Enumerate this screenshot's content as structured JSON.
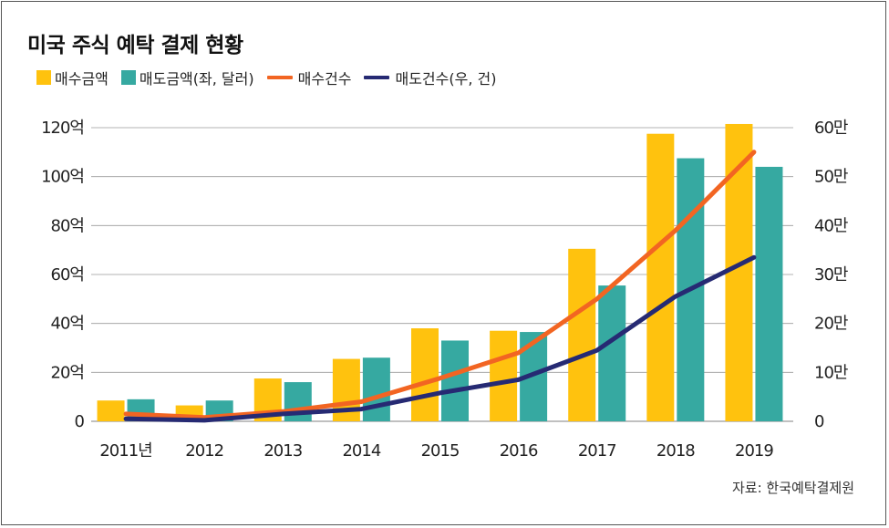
{
  "title": "미국 주식 예탁 결제 현황",
  "source": "자료: 한국예탁결제원",
  "colors": {
    "buy_amount": "#FFC20E",
    "sell_amount": "#36A9A1",
    "buy_count": "#F26522",
    "sell_count": "#262A73"
  },
  "legend": [
    {
      "label": "매수금액",
      "kind": "box",
      "color": "#FFC20E"
    },
    {
      "label": "매도금액(좌, 달러)",
      "kind": "box",
      "color": "#36A9A1"
    },
    {
      "label": "매수건수",
      "kind": "line",
      "color": "#F26522"
    },
    {
      "label": "매도건수(우, 건)",
      "kind": "line",
      "color": "#262A73"
    }
  ],
  "chart_data": {
    "type": "bar",
    "categories": [
      "2011년",
      "2012",
      "2013",
      "2014",
      "2015",
      "2016",
      "2017",
      "2018",
      "2019"
    ],
    "series": [
      {
        "name": "매수금액",
        "type": "bar",
        "axis": "left",
        "values": [
          8.5,
          6.5,
          17.5,
          25.5,
          38,
          37,
          70.5,
          117.5,
          121.5
        ]
      },
      {
        "name": "매도금액(좌, 달러)",
        "type": "bar",
        "axis": "left",
        "values": [
          9,
          8.5,
          16,
          26,
          33,
          36.5,
          55.5,
          107.5,
          104
        ]
      },
      {
        "name": "매수건수",
        "type": "line",
        "axis": "right",
        "values": [
          1.5,
          0.8,
          2.0,
          4.0,
          8.8,
          14.0,
          25.0,
          39.0,
          55.0
        ]
      },
      {
        "name": "매도건수(우, 건)",
        "type": "line",
        "axis": "right",
        "values": [
          0.5,
          0.2,
          1.5,
          2.5,
          5.8,
          8.5,
          14.5,
          25.5,
          33.5
        ]
      }
    ],
    "left_axis": {
      "ticks": [
        "0",
        "20억",
        "40억",
        "60억",
        "80억",
        "100억",
        "120억"
      ],
      "min": 0,
      "max": 120
    },
    "right_axis": {
      "ticks": [
        "0",
        "10만",
        "20만",
        "30만",
        "40만",
        "50만",
        "60만"
      ],
      "min": 0,
      "max": 60
    },
    "grid": true,
    "legend_position": "top-left"
  }
}
